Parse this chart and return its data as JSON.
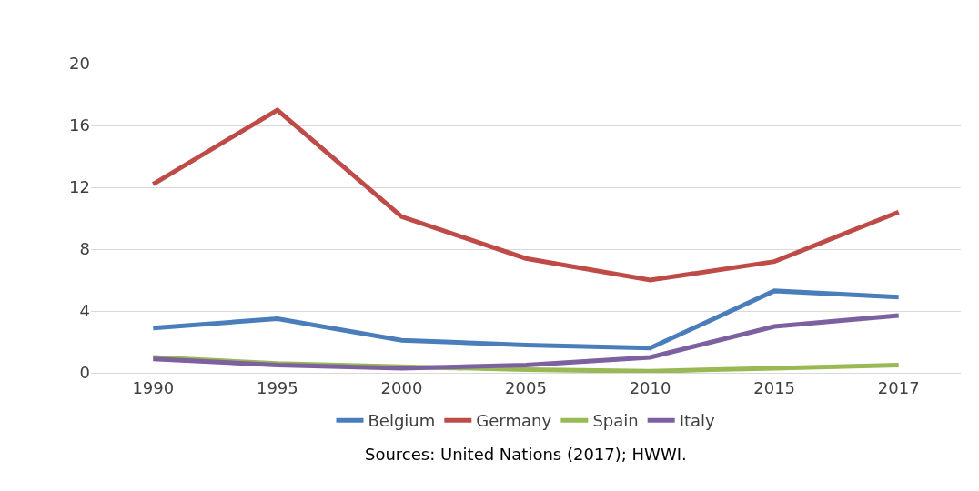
{
  "chart_data": {
    "type": "line",
    "categories": [
      "1990",
      "1995",
      "2000",
      "2005",
      "2010",
      "2015",
      "2017"
    ],
    "series": [
      {
        "name": "Belgium",
        "color": "#4a7ebb",
        "values": [
          2.9,
          3.5,
          2.1,
          1.8,
          1.6,
          5.3,
          4.9
        ]
      },
      {
        "name": "Germany",
        "color": "#be4b48",
        "values": [
          12.2,
          17.0,
          10.1,
          7.4,
          6.0,
          7.2,
          10.4
        ]
      },
      {
        "name": "Spain",
        "color": "#98b954",
        "values": [
          1.0,
          0.6,
          0.4,
          0.2,
          0.1,
          0.3,
          0.5
        ]
      },
      {
        "name": "Italy",
        "color": "#7d60a0",
        "values": [
          0.9,
          0.5,
          0.3,
          0.5,
          1.0,
          3.0,
          3.7
        ]
      }
    ],
    "ylim": [
      0,
      20
    ],
    "yticks": [
      0,
      4,
      8,
      12,
      16,
      20
    ],
    "grid": "y",
    "legend": "bottom",
    "marker": "none",
    "line_style": "solid",
    "annotations": [
      "Sources: United Nations (2017); HWWI."
    ]
  }
}
